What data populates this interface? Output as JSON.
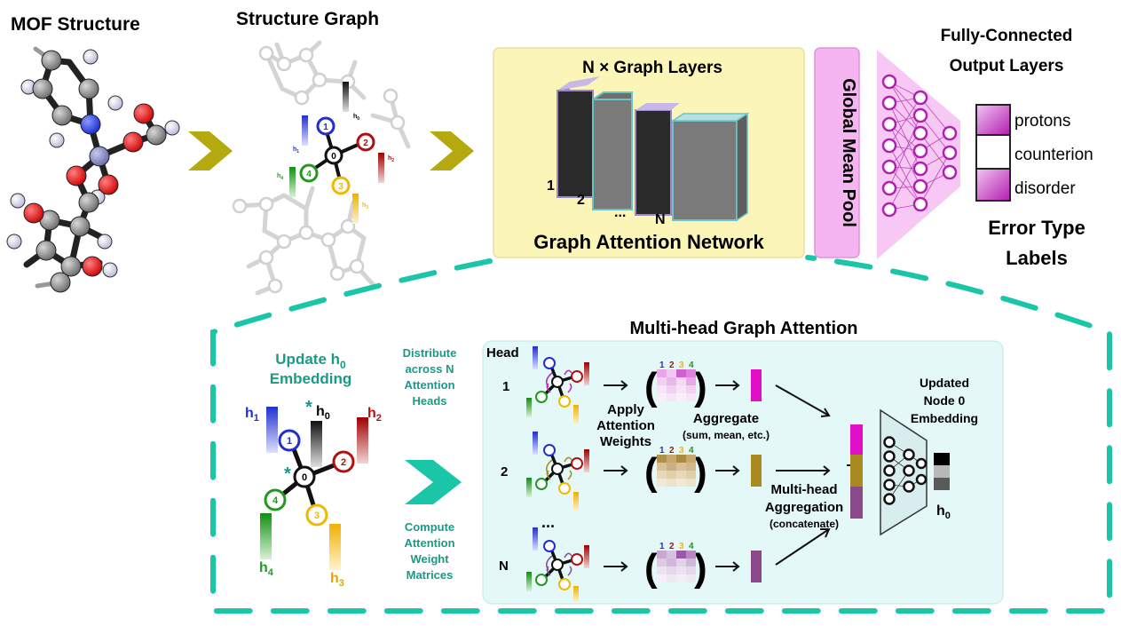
{
  "titles": {
    "mof": "MOF Structure",
    "graph": "Structure Graph",
    "layers": "N × Graph Layers",
    "gan": "Graph Attention Network",
    "pool": "Global Mean Pool",
    "fc_line1": "Fully-Connected",
    "fc_line2": "Output Layers",
    "err_line1": "Error Type",
    "err_line2": "Labels",
    "mha": "Multi-head Graph Attention"
  },
  "labels": [
    "protons",
    "counterion",
    "disorder"
  ],
  "layer_nums": [
    "1",
    "2",
    "...",
    "N"
  ],
  "node_nums": [
    "0",
    "1",
    "2",
    "3",
    "4"
  ],
  "embeddings": {
    "h0": "h0",
    "h1": "h1",
    "h2": "h2",
    "h3": "h3",
    "h4": "h4",
    "h0_base": "h",
    "sub0": "0",
    "sub1": "1",
    "sub2": "2",
    "sub3": "3",
    "sub4": "4"
  },
  "update": {
    "line1_base": "Update h",
    "line1_sub": "0",
    "line2": "Embedding"
  },
  "distribute": [
    "Distribute",
    "across N",
    "Attention",
    "Heads"
  ],
  "compute": [
    "Compute",
    "Attention",
    "Weight",
    "Matrices"
  ],
  "head_label": "Head",
  "heads": [
    "1",
    "2",
    "...",
    "N"
  ],
  "matrix_cols": [
    "1",
    "2",
    "3",
    "4"
  ],
  "apply": [
    "Apply",
    "Attention",
    "Weights"
  ],
  "aggregate": [
    "Aggregate",
    "(sum, mean, etc.)"
  ],
  "mh_agg": [
    "Multi-head",
    "Aggregation",
    "(concatenate)"
  ],
  "updated": [
    "Updated",
    "Node 0",
    "Embedding"
  ],
  "colors": {
    "accent_teal": "#1bc6a8",
    "olive": "#b4a90f",
    "node1_blue": "#1f2fd0",
    "node2_red": "#b01010",
    "node3_yellow": "#f0b800",
    "node4_green": "#1f9a1f",
    "magenta": "#b020b0",
    "pink_pool": "#f5b5f0",
    "yellow_panel": "#fbf5b8",
    "cyan_panel": "#e4f8f8"
  }
}
